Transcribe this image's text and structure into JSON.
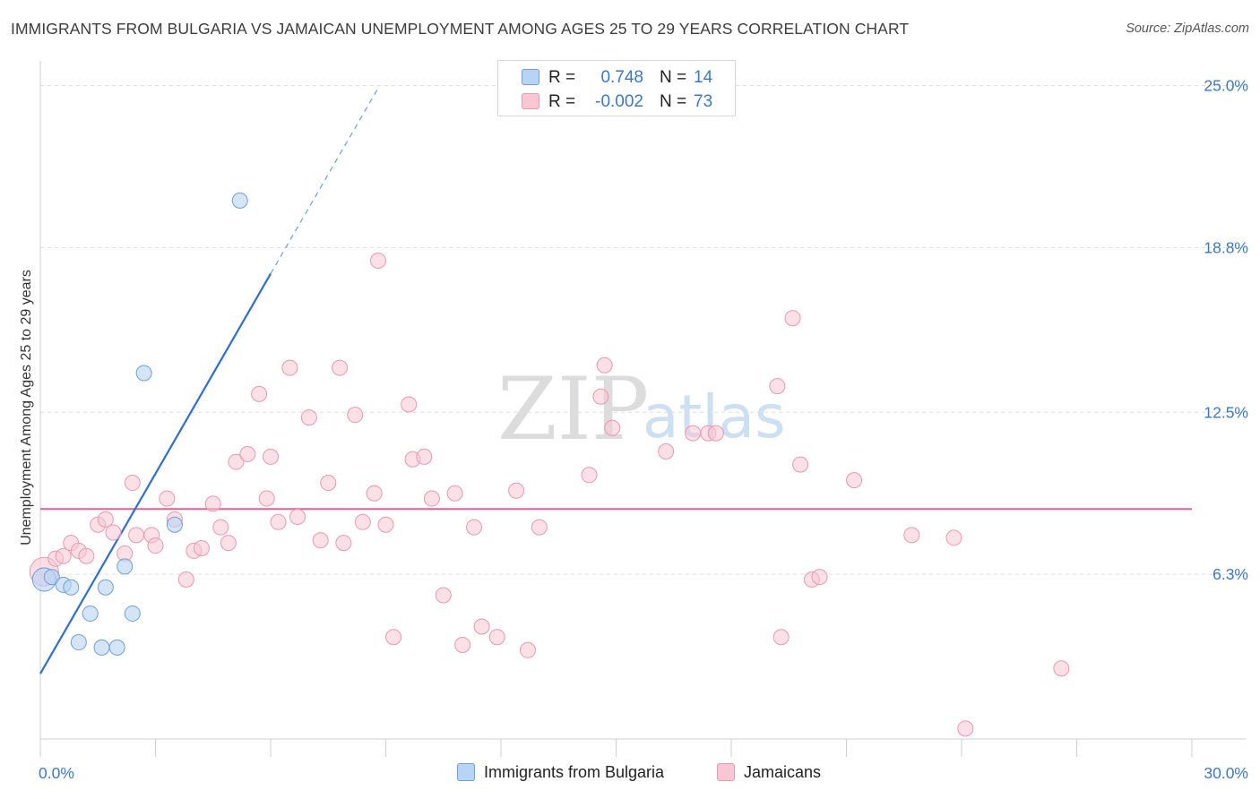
{
  "header": {
    "title": "IMMIGRANTS FROM BULGARIA VS JAMAICAN UNEMPLOYMENT AMONG AGES 25 TO 29 YEARS CORRELATION CHART",
    "source": "Source: ZipAtlas.com"
  },
  "watermark": {
    "zip": "ZIP",
    "atlas": "atlas"
  },
  "legend": {
    "series1": {
      "r_label": "R =",
      "r_value": "0.748",
      "n_label": "N =",
      "n_value": "14"
    },
    "series2": {
      "r_label": "R =",
      "r_value": "-0.002",
      "n_label": "N =",
      "n_value": "73"
    }
  },
  "bottom_legend": {
    "series1": "Immigrants from Bulgaria",
    "series2": "Jamaicans"
  },
  "colors": {
    "blue_fill": "#b9d3f4",
    "blue_stroke": "#6d9fd9",
    "blue_line": "#2f6fd0",
    "pink_fill": "#f8c7d4",
    "pink_stroke": "#ea98b0",
    "pink_line": "#e0648c",
    "grid": "#dddddd",
    "tick_text": "#3b78c8"
  },
  "chart_data": {
    "type": "scatter",
    "title": "IMMIGRANTS FROM BULGARIA VS JAMAICAN UNEMPLOYMENT AMONG AGES 25 TO 29 YEARS CORRELATION CHART",
    "xlabel": "",
    "ylabel": "Unemployment Among Ages 25 to 29 years",
    "xlim": [
      0,
      30
    ],
    "ylim": [
      0,
      25.6
    ],
    "x_tick_labels": [
      {
        "value": 0,
        "label": "0.0%"
      },
      {
        "value": 30,
        "label": "30.0%"
      }
    ],
    "y_tick_labels": [
      {
        "value": 6.3,
        "label": "6.3%"
      },
      {
        "value": 12.5,
        "label": "12.5%"
      },
      {
        "value": 18.8,
        "label": "18.8%"
      },
      {
        "value": 25.0,
        "label": "25.0%"
      }
    ],
    "grid": true,
    "series": [
      {
        "name": "Immigrants from Bulgaria",
        "r": 0.748,
        "n": 14,
        "trend": {
          "x": [
            0,
            6.0
          ],
          "y": [
            2.5,
            17.8
          ],
          "dashed_to": {
            "x": 8.8,
            "y": 24.9
          }
        },
        "points": [
          {
            "x": 0.1,
            "y": 6.1,
            "big": true
          },
          {
            "x": 0.3,
            "y": 6.2
          },
          {
            "x": 0.6,
            "y": 5.9
          },
          {
            "x": 0.8,
            "y": 5.8
          },
          {
            "x": 1.0,
            "y": 3.7
          },
          {
            "x": 1.3,
            "y": 4.8
          },
          {
            "x": 1.6,
            "y": 3.5
          },
          {
            "x": 1.7,
            "y": 5.8
          },
          {
            "x": 2.0,
            "y": 3.5
          },
          {
            "x": 2.2,
            "y": 6.6
          },
          {
            "x": 2.4,
            "y": 4.8
          },
          {
            "x": 2.7,
            "y": 14.0
          },
          {
            "x": 3.5,
            "y": 8.2
          },
          {
            "x": 5.2,
            "y": 20.6
          }
        ]
      },
      {
        "name": "Jamaicans",
        "r": -0.002,
        "n": 73,
        "trend": {
          "x": [
            0,
            30
          ],
          "y": [
            8.8,
            8.8
          ]
        },
        "points": [
          {
            "x": 0.1,
            "y": 6.4,
            "big": true
          },
          {
            "x": 0.4,
            "y": 6.9
          },
          {
            "x": 0.6,
            "y": 7.0
          },
          {
            "x": 0.8,
            "y": 7.5
          },
          {
            "x": 1.0,
            "y": 7.2
          },
          {
            "x": 1.2,
            "y": 7.0
          },
          {
            "x": 1.5,
            "y": 8.2
          },
          {
            "x": 1.7,
            "y": 8.4
          },
          {
            "x": 1.9,
            "y": 7.9
          },
          {
            "x": 2.2,
            "y": 7.1
          },
          {
            "x": 2.4,
            "y": 9.8
          },
          {
            "x": 2.5,
            "y": 7.8
          },
          {
            "x": 2.9,
            "y": 7.8
          },
          {
            "x": 3.0,
            "y": 7.4
          },
          {
            "x": 3.3,
            "y": 9.2
          },
          {
            "x": 3.5,
            "y": 8.4
          },
          {
            "x": 3.8,
            "y": 6.1
          },
          {
            "x": 4.0,
            "y": 7.2
          },
          {
            "x": 4.2,
            "y": 7.3
          },
          {
            "x": 4.5,
            "y": 9.0
          },
          {
            "x": 4.7,
            "y": 8.1
          },
          {
            "x": 4.9,
            "y": 7.5
          },
          {
            "x": 5.1,
            "y": 10.6
          },
          {
            "x": 5.4,
            "y": 10.9
          },
          {
            "x": 5.7,
            "y": 13.2
          },
          {
            "x": 5.9,
            "y": 9.2
          },
          {
            "x": 6.0,
            "y": 10.8
          },
          {
            "x": 6.2,
            "y": 8.3
          },
          {
            "x": 6.5,
            "y": 14.2
          },
          {
            "x": 6.7,
            "y": 8.5
          },
          {
            "x": 7.0,
            "y": 12.3
          },
          {
            "x": 7.3,
            "y": 7.6
          },
          {
            "x": 7.5,
            "y": 9.8
          },
          {
            "x": 7.8,
            "y": 14.2
          },
          {
            "x": 7.9,
            "y": 7.5
          },
          {
            "x": 8.2,
            "y": 12.4
          },
          {
            "x": 8.4,
            "y": 8.3
          },
          {
            "x": 8.7,
            "y": 9.4
          },
          {
            "x": 8.8,
            "y": 18.3
          },
          {
            "x": 9.0,
            "y": 8.2
          },
          {
            "x": 9.2,
            "y": 3.9
          },
          {
            "x": 9.6,
            "y": 12.8
          },
          {
            "x": 9.7,
            "y": 10.7
          },
          {
            "x": 10.0,
            "y": 10.8
          },
          {
            "x": 10.2,
            "y": 9.2
          },
          {
            "x": 10.5,
            "y": 5.5
          },
          {
            "x": 10.8,
            "y": 9.4
          },
          {
            "x": 11.0,
            "y": 3.6
          },
          {
            "x": 11.3,
            "y": 8.1
          },
          {
            "x": 11.5,
            "y": 4.3
          },
          {
            "x": 11.9,
            "y": 3.9
          },
          {
            "x": 12.4,
            "y": 9.5
          },
          {
            "x": 12.7,
            "y": 3.4
          },
          {
            "x": 13.0,
            "y": 8.1
          },
          {
            "x": 14.3,
            "y": 10.1
          },
          {
            "x": 14.6,
            "y": 13.1
          },
          {
            "x": 14.7,
            "y": 14.3
          },
          {
            "x": 14.9,
            "y": 11.9
          },
          {
            "x": 16.3,
            "y": 11.0
          },
          {
            "x": 17.0,
            "y": 11.7
          },
          {
            "x": 17.4,
            "y": 11.7
          },
          {
            "x": 17.6,
            "y": 11.7
          },
          {
            "x": 19.2,
            "y": 13.5
          },
          {
            "x": 19.3,
            "y": 3.9
          },
          {
            "x": 19.6,
            "y": 16.1
          },
          {
            "x": 19.8,
            "y": 10.5
          },
          {
            "x": 20.1,
            "y": 6.1
          },
          {
            "x": 20.3,
            "y": 6.2
          },
          {
            "x": 21.2,
            "y": 9.9
          },
          {
            "x": 22.7,
            "y": 7.8
          },
          {
            "x": 23.8,
            "y": 7.7
          },
          {
            "x": 24.1,
            "y": 0.4
          },
          {
            "x": 26.6,
            "y": 2.7
          }
        ]
      }
    ]
  }
}
